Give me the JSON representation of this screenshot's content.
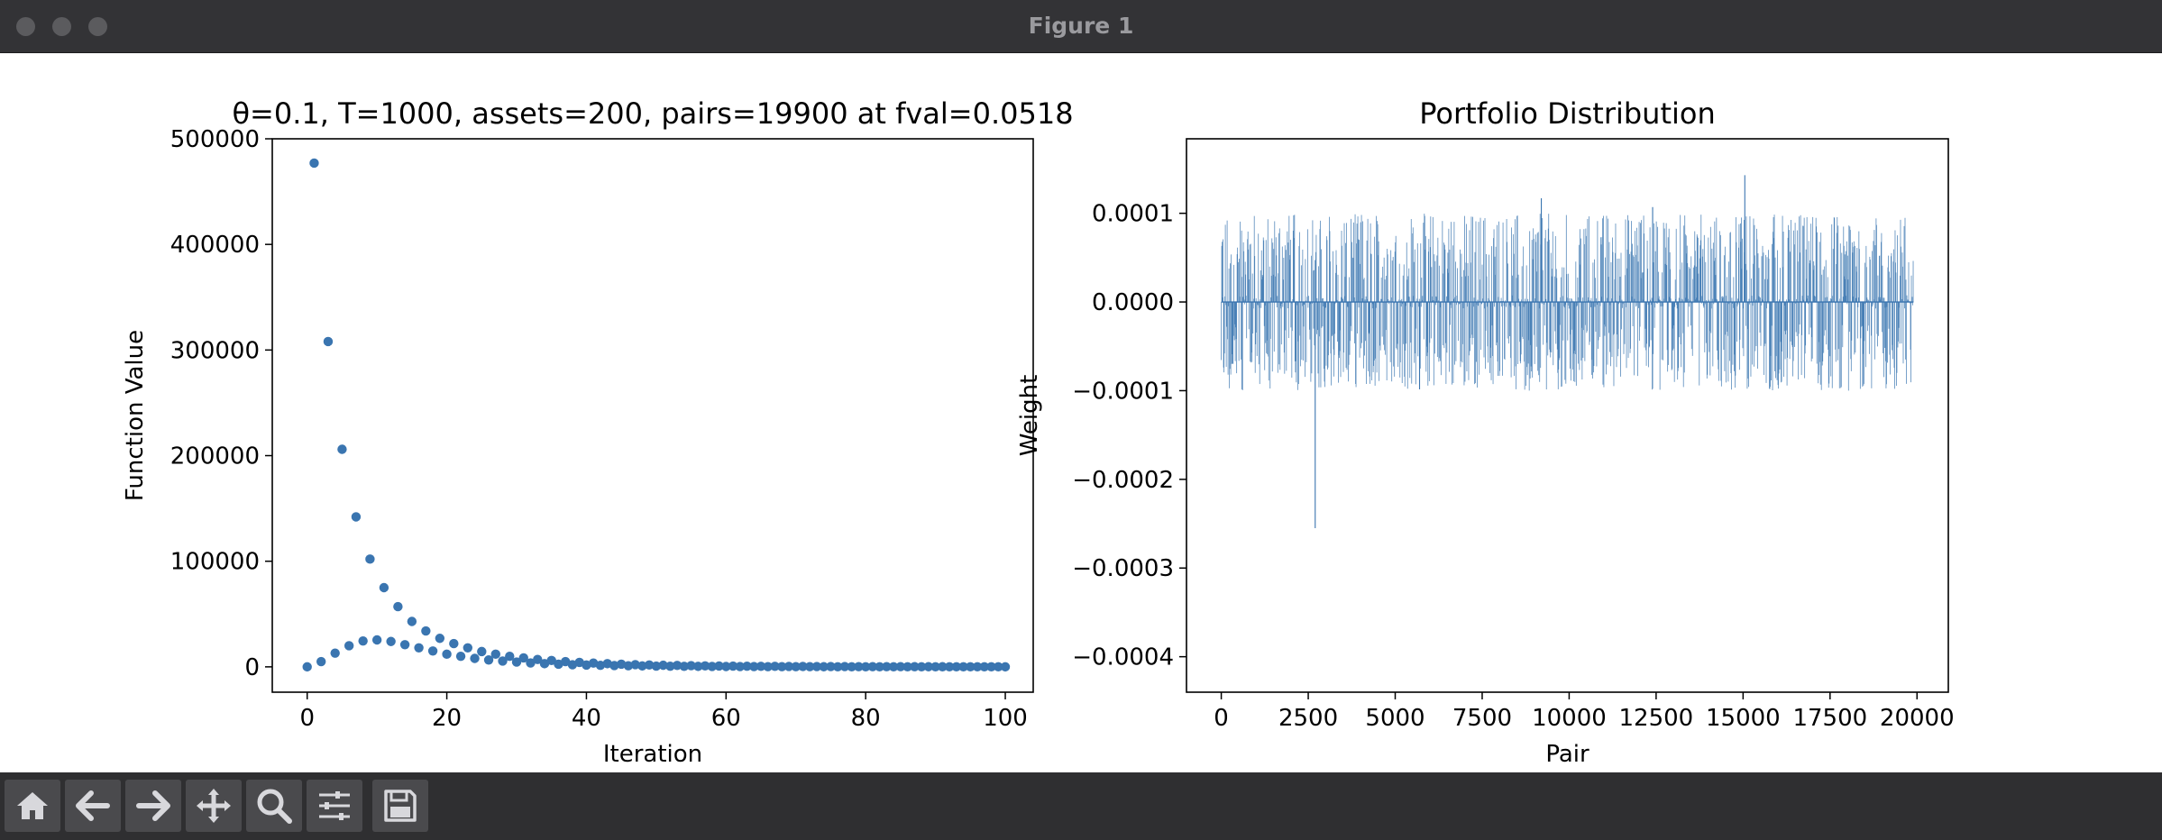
{
  "window": {
    "title": "Figure 1"
  },
  "toolbar": {
    "buttons": [
      {
        "name": "home-icon"
      },
      {
        "name": "back-arrow-icon"
      },
      {
        "name": "forward-arrow-icon"
      },
      {
        "name": "pan-move-icon"
      },
      {
        "name": "zoom-magnifier-icon"
      },
      {
        "name": "configure-subplots-icon"
      },
      {
        "name": "save-disk-icon"
      }
    ]
  },
  "colors": {
    "series": "#3a75b0",
    "axes": "#000000",
    "background": "#ffffff"
  },
  "chart_data": [
    {
      "type": "scatter",
      "title": "θ=0.1, T=1000, assets=200, pairs=19900 at fval=0.0518",
      "xlabel": "Iteration",
      "ylabel": "Function Value",
      "xlim": [
        -5,
        104
      ],
      "ylim": [
        -24000,
        500000
      ],
      "xticks": [
        0,
        20,
        40,
        60,
        80,
        100
      ],
      "yticks": [
        0,
        100000,
        200000,
        300000,
        400000,
        500000
      ],
      "grid": false,
      "series": [
        {
          "x": [
            1,
            3,
            5,
            7,
            9,
            11,
            13,
            15,
            17,
            19,
            21,
            23,
            25,
            27,
            29,
            31,
            33,
            35,
            37,
            39,
            41,
            43,
            45,
            47,
            49,
            51,
            53,
            55,
            57,
            59,
            61,
            63,
            65,
            67,
            69,
            71,
            73,
            75,
            77,
            79,
            81,
            83,
            85,
            87,
            89,
            91,
            93,
            95,
            97,
            99
          ],
          "y": [
            477000,
            308000,
            206000,
            142000,
            102000,
            75000,
            57000,
            43000,
            34000,
            27000,
            22000,
            18000,
            14500,
            12000,
            10000,
            8500,
            7000,
            6000,
            5000,
            4200,
            3600,
            3000,
            2500,
            2100,
            1800,
            1500,
            1300,
            1100,
            950,
            800,
            700,
            600,
            500,
            450,
            400,
            350,
            300,
            260,
            230,
            200,
            180,
            160,
            140,
            120,
            110,
            100,
            90,
            80,
            70,
            60
          ]
        },
        {
          "x": [
            0,
            2,
            4,
            6,
            8,
            10,
            12,
            14,
            16,
            18,
            20,
            22,
            24,
            26,
            28,
            30,
            32,
            34,
            36,
            38,
            40,
            42,
            44,
            46,
            48,
            50,
            52,
            54,
            56,
            58,
            60,
            62,
            64,
            66,
            68,
            70,
            72,
            74,
            76,
            78,
            80,
            82,
            84,
            86,
            88,
            90,
            92,
            94,
            96,
            98,
            100
          ],
          "y": [
            0,
            5000,
            13000,
            20000,
            24500,
            25500,
            24000,
            21000,
            18000,
            15000,
            12000,
            10000,
            8000,
            6500,
            5500,
            4500,
            3700,
            3000,
            2500,
            2000,
            1700,
            1400,
            1200,
            1000,
            850,
            700,
            600,
            500,
            430,
            370,
            320,
            270,
            230,
            200,
            170,
            150,
            130,
            110,
            95,
            80,
            70,
            60,
            50,
            45,
            40,
            35,
            30,
            25,
            20,
            15,
            10
          ]
        }
      ]
    },
    {
      "type": "bar",
      "title": "Portfolio Distribution",
      "xlabel": "Pair",
      "ylabel": "Weight",
      "xlim": [
        -1000,
        20900
      ],
      "ylim": [
        -0.00044,
        0.000184
      ],
      "xticks": [
        0,
        2500,
        5000,
        7500,
        10000,
        12500,
        15000,
        17500,
        20000
      ],
      "yticks": [
        0.0001,
        0.0,
        -0.0001,
        -0.0002,
        -0.0003,
        -0.0004
      ],
      "ytick_labels": [
        "0.0001",
        "0.0000",
        "−0.0001",
        "−0.0002",
        "−0.0003",
        "−0.0004"
      ],
      "grid": false,
      "n_pairs": 19900,
      "spikes": [
        {
          "x": 2700,
          "y": -0.000255
        },
        {
          "x": 15050,
          "y": 0.000143
        },
        {
          "x": 9200,
          "y": 0.000117
        },
        {
          "x": 12400,
          "y": 0.000107
        },
        {
          "x": 600,
          "y": -9.85e-05
        },
        {
          "x": 5700,
          "y": -9.85e-05
        }
      ],
      "bulk_envelope": {
        "max": 0.0001,
        "min": -0.0001
      }
    }
  ]
}
